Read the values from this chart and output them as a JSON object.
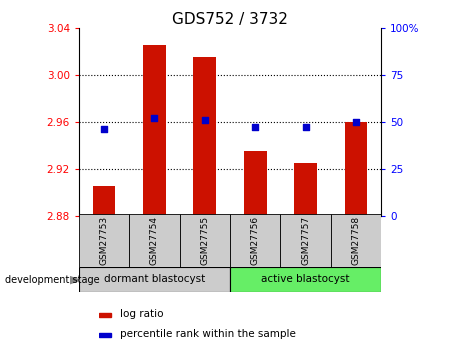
{
  "title": "GDS752 / 3732",
  "categories": [
    "GSM27753",
    "GSM27754",
    "GSM27755",
    "GSM27756",
    "GSM27757",
    "GSM27758"
  ],
  "log_ratio": [
    2.905,
    3.025,
    3.015,
    2.935,
    2.925,
    2.96
  ],
  "percentile": [
    46,
    52,
    51,
    47,
    47,
    50
  ],
  "bar_color": "#cc1100",
  "dot_color": "#0000cc",
  "baseline": 2.88,
  "ylim_left": [
    2.88,
    3.04
  ],
  "ylim_right": [
    0,
    100
  ],
  "yticks_left": [
    2.88,
    2.92,
    2.96,
    3.0,
    3.04
  ],
  "yticks_right": [
    0,
    25,
    50,
    75,
    100
  ],
  "ytick_right_labels": [
    "0",
    "25",
    "50",
    "75",
    "100%"
  ],
  "grid_ticks": [
    3.0,
    2.96,
    2.92
  ],
  "group1_label": "dormant blastocyst",
  "group2_label": "active blastocyst",
  "group1_color": "#cccccc",
  "group2_color": "#66ee66",
  "label_bar": "log ratio",
  "label_dot": "percentile rank within the sample",
  "dev_label": "development stage",
  "title_fontsize": 11,
  "tick_fontsize": 7.5,
  "bar_width": 0.45
}
